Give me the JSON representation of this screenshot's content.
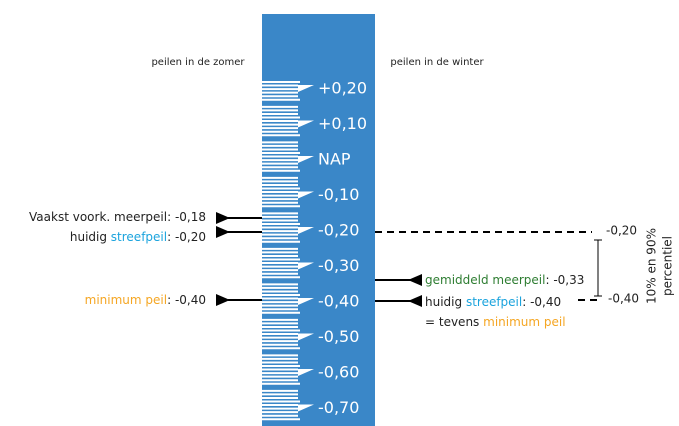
{
  "headings": {
    "summer": "peilen in de zomer",
    "winter": "peilen in de winter"
  },
  "gauge": {
    "labels": [
      "+0,20",
      "+0,10",
      "NAP",
      "-0,10",
      "-0,20",
      "-0,30",
      "-0,40",
      "-0,50",
      "-0,60",
      "-0,70"
    ]
  },
  "summer_levels": [
    {
      "parts": [
        "Vaakst voork. meerpeil: -0,18"
      ]
    },
    {
      "parts": [
        "huidig ",
        "streefpeil",
        ": -0,20"
      ]
    },
    {
      "parts": [
        "minimum peil",
        ": -0,40"
      ]
    }
  ],
  "winter_levels": [
    {
      "parts": [
        "gemiddeld meerpeil",
        ": -0,33"
      ]
    },
    {
      "parts": [
        "huidig ",
        "streefpeil",
        ": -0,40"
      ]
    },
    {
      "parts": [
        "= tevens ",
        "minimum peil"
      ]
    }
  ],
  "percentile": {
    "upper": "-0,20",
    "lower": "-0,40",
    "label": [
      "10% en 90%",
      "percentiel"
    ]
  }
}
